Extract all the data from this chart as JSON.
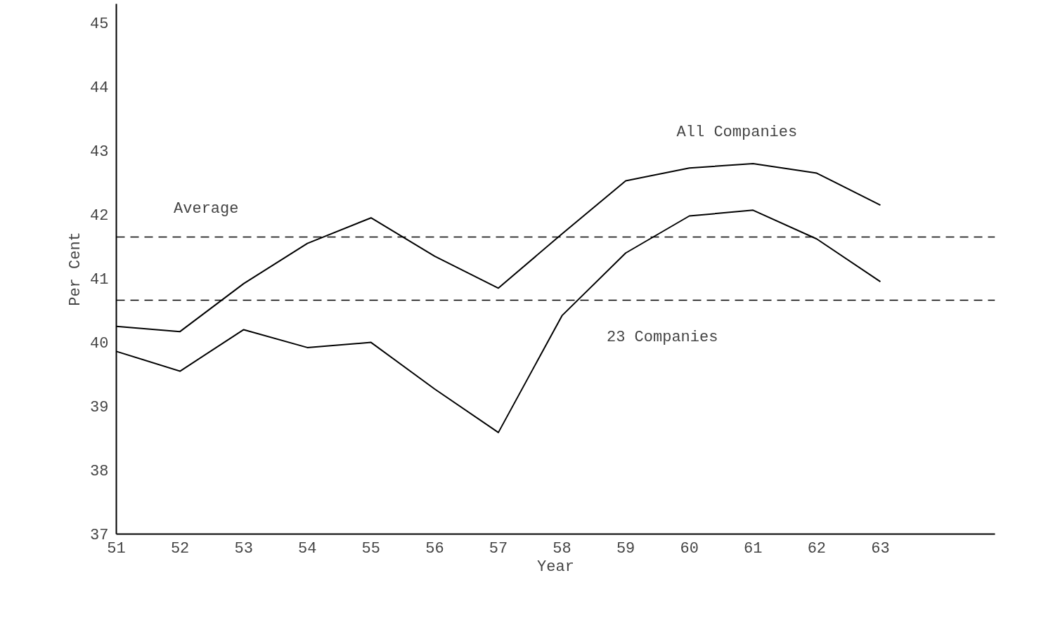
{
  "chart_data": {
    "type": "line",
    "xlabel": "Year",
    "ylabel": "Per Cent",
    "x": [
      51,
      52,
      53,
      54,
      55,
      56,
      57,
      58,
      59,
      60,
      61,
      62,
      63
    ],
    "series": [
      {
        "name": "All Companies",
        "color": "#000000",
        "values": [
          40.25,
          40.17,
          40.92,
          41.55,
          41.95,
          41.35,
          40.85,
          41.7,
          42.53,
          42.73,
          42.8,
          42.65,
          42.15
        ]
      },
      {
        "name": "23 Companies",
        "color": "#000000",
        "values": [
          39.86,
          39.55,
          40.2,
          39.92,
          40.0,
          39.27,
          38.59,
          40.42,
          41.4,
          41.98,
          42.07,
          41.62,
          40.95
        ]
      }
    ],
    "ref_lines": [
      {
        "axis": "y",
        "value": 41.65,
        "label": "Average",
        "line_style": "dashed"
      },
      {
        "axis": "y",
        "value": 40.66,
        "label": null,
        "line_style": "dashed"
      }
    ],
    "xlim": [
      51,
      64.8
    ],
    "ylim": [
      37,
      45.3
    ],
    "xticks": [
      51,
      52,
      53,
      54,
      55,
      56,
      57,
      58,
      59,
      60,
      61,
      62,
      63
    ],
    "yticks": [
      37,
      38,
      39,
      40,
      41,
      42,
      43,
      44,
      45
    ],
    "grid": false,
    "legend": false,
    "marker": "none",
    "line_style": "solid"
  }
}
